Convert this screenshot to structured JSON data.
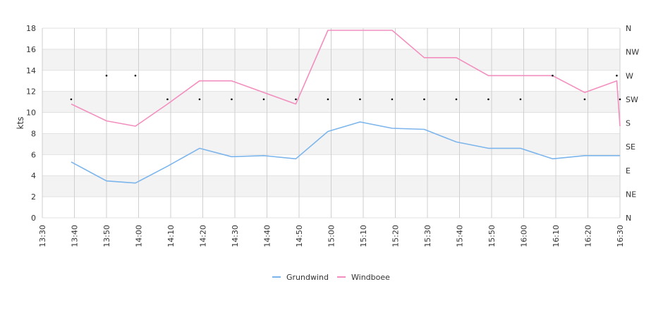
{
  "chart_data": {
    "type": "line",
    "xlabel": "",
    "ylabel": "kts",
    "x": [
      "13:30",
      "13:40",
      "13:50",
      "14:00",
      "14:10",
      "14:20",
      "14:30",
      "14:40",
      "14:50",
      "15:00",
      "15:10",
      "15:20",
      "15:30",
      "15:40",
      "15:50",
      "16:00",
      "16:10",
      "16:20",
      "16:30"
    ],
    "ylim": [
      0,
      18
    ],
    "yticks": [
      0,
      2,
      4,
      6,
      8,
      10,
      12,
      14,
      16,
      18
    ],
    "grid": true,
    "legend": "bottom",
    "series": [
      {
        "name": "Grundwind",
        "color": "#7cb5ec",
        "points": [
          {
            "t": "13:39",
            "v": 5.3
          },
          {
            "t": "13:50",
            "v": 3.5
          },
          {
            "t": "13:59",
            "v": 3.3
          },
          {
            "t": "14:09",
            "v": 4.9
          },
          {
            "t": "14:19",
            "v": 6.6
          },
          {
            "t": "14:29",
            "v": 5.8
          },
          {
            "t": "14:39",
            "v": 5.9
          },
          {
            "t": "14:49",
            "v": 5.6
          },
          {
            "t": "14:59",
            "v": 8.2
          },
          {
            "t": "15:09",
            "v": 9.1
          },
          {
            "t": "15:19",
            "v": 8.5
          },
          {
            "t": "15:29",
            "v": 8.4
          },
          {
            "t": "15:39",
            "v": 7.2
          },
          {
            "t": "15:49",
            "v": 6.6
          },
          {
            "t": "15:59",
            "v": 6.6
          },
          {
            "t": "16:09",
            "v": 5.6
          },
          {
            "t": "16:19",
            "v": 5.9
          },
          {
            "t": "16:30",
            "v": 5.9
          }
        ]
      },
      {
        "name": "Windboee",
        "color": "#f28fbf",
        "points": [
          {
            "t": "13:39",
            "v": 10.8
          },
          {
            "t": "13:50",
            "v": 9.2
          },
          {
            "t": "13:59",
            "v": 8.7
          },
          {
            "t": "14:09",
            "v": 10.8
          },
          {
            "t": "14:19",
            "v": 13.0
          },
          {
            "t": "14:29",
            "v": 13.0
          },
          {
            "t": "14:39",
            "v": 11.9
          },
          {
            "t": "14:49",
            "v": 10.8
          },
          {
            "t": "14:59",
            "v": 17.8
          },
          {
            "t": "15:09",
            "v": 17.8
          },
          {
            "t": "15:19",
            "v": 17.8
          },
          {
            "t": "15:29",
            "v": 15.2
          },
          {
            "t": "15:39",
            "v": 15.2
          },
          {
            "t": "15:49",
            "v": 13.5
          },
          {
            "t": "15:59",
            "v": 13.5
          },
          {
            "t": "16:09",
            "v": 13.5
          },
          {
            "t": "16:19",
            "v": 11.9
          },
          {
            "t": "16:29",
            "v": 13.0
          },
          {
            "t": "16:30",
            "v": 8.7
          }
        ]
      }
    ],
    "secondary_axis": {
      "labels": [
        "N",
        "NE",
        "E",
        "SE",
        "S",
        "SW",
        "W",
        "NW",
        "N"
      ]
    },
    "direction_markers": {
      "color": "#000000",
      "points": [
        {
          "t": "13:39",
          "d": "SW"
        },
        {
          "t": "13:50",
          "d": "W"
        },
        {
          "t": "13:59",
          "d": "W"
        },
        {
          "t": "14:09",
          "d": "SW"
        },
        {
          "t": "14:19",
          "d": "SW"
        },
        {
          "t": "14:29",
          "d": "SW"
        },
        {
          "t": "14:39",
          "d": "SW"
        },
        {
          "t": "14:49",
          "d": "SW"
        },
        {
          "t": "14:59",
          "d": "SW"
        },
        {
          "t": "15:09",
          "d": "SW"
        },
        {
          "t": "15:19",
          "d": "SW"
        },
        {
          "t": "15:29",
          "d": "SW"
        },
        {
          "t": "15:39",
          "d": "SW"
        },
        {
          "t": "15:49",
          "d": "SW"
        },
        {
          "t": "15:59",
          "d": "SW"
        },
        {
          "t": "16:09",
          "d": "W"
        },
        {
          "t": "16:19",
          "d": "SW"
        },
        {
          "t": "16:29",
          "d": "W"
        },
        {
          "t": "16:30",
          "d": "SW"
        }
      ]
    }
  }
}
